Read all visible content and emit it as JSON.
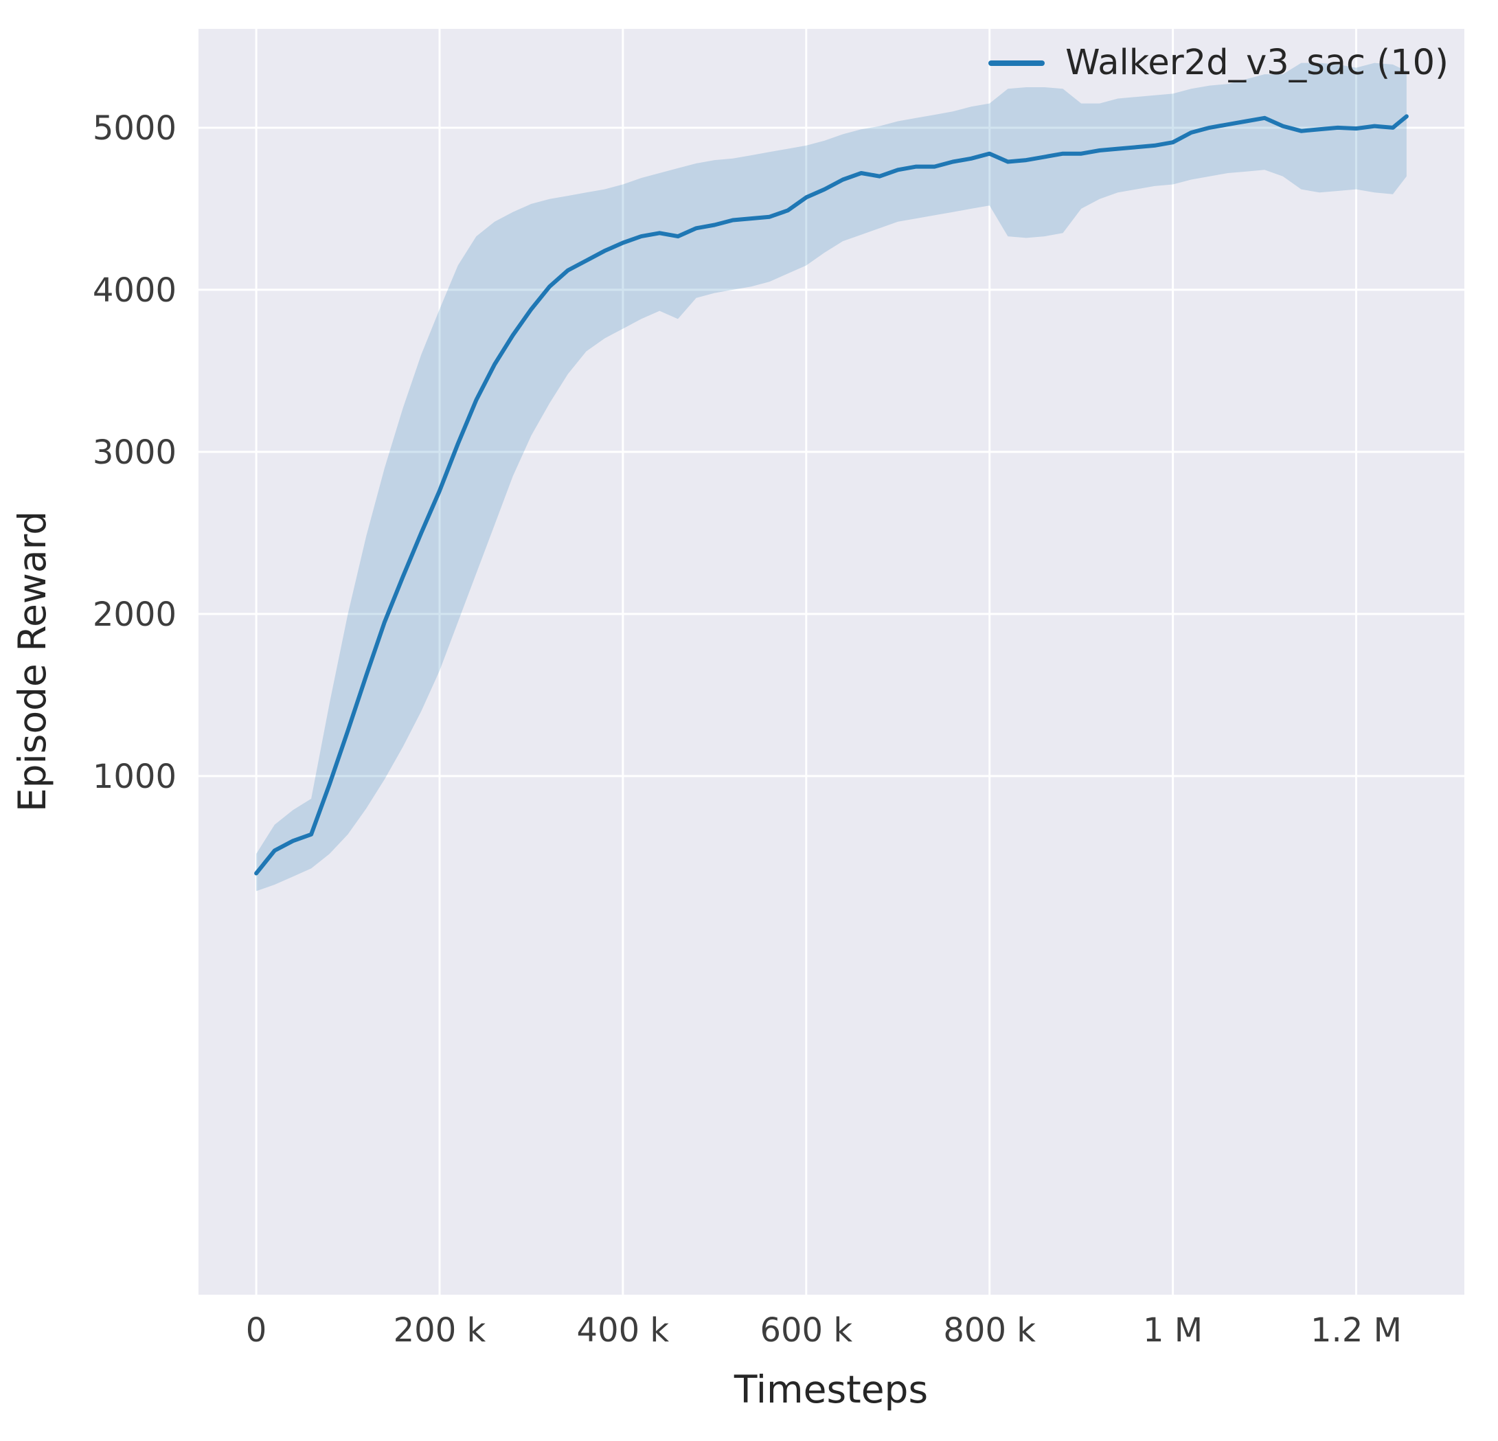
{
  "figure": {
    "bg": "#ffffff",
    "plot_bg": "#eaeaf2",
    "grid_color": "#ffffff",
    "text_color": "#262626",
    "tick_color": "#3d3d3d",
    "accent": "#1f77b4"
  },
  "chart_data": {
    "type": "line",
    "title": "",
    "xlabel": "Timesteps",
    "ylabel": "Episode Reward",
    "legend_position": "upper right",
    "grid": true,
    "xlim": [
      -63000,
      1318000
    ],
    "ylim": [
      -2200,
      5610
    ],
    "x_ticks": [
      {
        "v": 0,
        "label": "0"
      },
      {
        "v": 200000,
        "label": "200 k"
      },
      {
        "v": 400000,
        "label": "400 k"
      },
      {
        "v": 600000,
        "label": "600 k"
      },
      {
        "v": 800000,
        "label": "800 k"
      },
      {
        "v": 1000000,
        "label": "1 M"
      },
      {
        "v": 1200000,
        "label": "1.2 M"
      }
    ],
    "y_ticks": [
      {
        "v": 1000,
        "label": "1000"
      },
      {
        "v": 2000,
        "label": "2000"
      },
      {
        "v": 3000,
        "label": "3000"
      },
      {
        "v": 4000,
        "label": "4000"
      },
      {
        "v": 5000,
        "label": "5000"
      }
    ],
    "series": [
      {
        "name": "Walker2d_v3_sac (10)",
        "color": "#1f77b4",
        "band_opacity": 0.2,
        "x": [
          0,
          20000,
          40000,
          60000,
          80000,
          100000,
          120000,
          140000,
          160000,
          180000,
          200000,
          220000,
          240000,
          260000,
          280000,
          300000,
          320000,
          340000,
          360000,
          380000,
          400000,
          420000,
          440000,
          460000,
          480000,
          500000,
          520000,
          540000,
          560000,
          580000,
          600000,
          620000,
          640000,
          660000,
          680000,
          700000,
          720000,
          740000,
          760000,
          780000,
          800000,
          820000,
          840000,
          860000,
          880000,
          900000,
          920000,
          940000,
          960000,
          980000,
          1000000,
          1020000,
          1040000,
          1060000,
          1080000,
          1100000,
          1120000,
          1140000,
          1160000,
          1180000,
          1200000,
          1220000,
          1240000,
          1255000
        ],
        "mean": [
          400,
          540,
          600,
          640,
          950,
          1280,
          1620,
          1950,
          2230,
          2500,
          2760,
          3050,
          3320,
          3540,
          3720,
          3880,
          4020,
          4120,
          4180,
          4240,
          4290,
          4330,
          4350,
          4330,
          4380,
          4400,
          4430,
          4440,
          4450,
          4490,
          4570,
          4620,
          4680,
          4720,
          4700,
          4740,
          4760,
          4760,
          4790,
          4810,
          4840,
          4790,
          4800,
          4820,
          4840,
          4840,
          4860,
          4870,
          4880,
          4890,
          4910,
          4970,
          5000,
          5020,
          5040,
          5060,
          5010,
          4980,
          4990,
          5000,
          4995,
          5010,
          5000,
          5070
        ],
        "lower": [
          290,
          330,
          380,
          430,
          520,
          640,
          800,
          980,
          1180,
          1400,
          1650,
          1950,
          2250,
          2550,
          2850,
          3100,
          3300,
          3480,
          3620,
          3700,
          3760,
          3820,
          3870,
          3820,
          3950,
          3980,
          4000,
          4020,
          4050,
          4100,
          4150,
          4230,
          4300,
          4340,
          4380,
          4420,
          4440,
          4460,
          4480,
          4500,
          4520,
          4330,
          4320,
          4330,
          4350,
          4500,
          4560,
          4600,
          4620,
          4640,
          4650,
          4680,
          4700,
          4720,
          4730,
          4740,
          4700,
          4620,
          4600,
          4610,
          4620,
          4600,
          4590,
          4700
        ],
        "upper": [
          520,
          700,
          790,
          860,
          1450,
          2000,
          2480,
          2900,
          3270,
          3600,
          3880,
          4150,
          4330,
          4420,
          4480,
          4530,
          4560,
          4580,
          4600,
          4620,
          4650,
          4690,
          4720,
          4750,
          4780,
          4800,
          4810,
          4830,
          4850,
          4870,
          4890,
          4920,
          4960,
          4990,
          5010,
          5040,
          5060,
          5080,
          5100,
          5130,
          5150,
          5240,
          5250,
          5250,
          5240,
          5150,
          5150,
          5180,
          5190,
          5200,
          5210,
          5240,
          5260,
          5270,
          5300,
          5330,
          5330,
          5400,
          5400,
          5390,
          5370,
          5400,
          5390,
          5350
        ]
      }
    ]
  }
}
